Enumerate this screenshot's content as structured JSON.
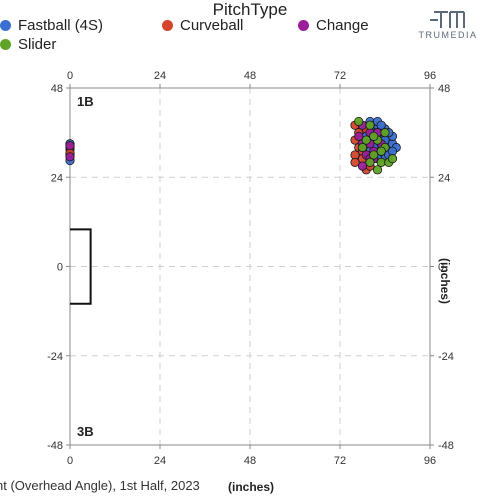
{
  "legend": {
    "title": "PitchType",
    "items": [
      {
        "label": "Fastball (4S)",
        "color": "#3b6fd1"
      },
      {
        "label": "Curveball",
        "color": "#d5442b"
      },
      {
        "label": "Change",
        "color": "#9a1e9a"
      },
      {
        "label": "Slider",
        "color": "#5fa424"
      }
    ]
  },
  "brand": {
    "name": "TRUMEDIA",
    "icon": "trumedia-logo-icon"
  },
  "caption": "nt (Overhead Angle), 1st Half, 2023",
  "unit_label_bottom": "(inches)",
  "unit_label_side": "(inches)",
  "chart_data": {
    "type": "scatter",
    "title": "",
    "xlabel": "(inches)",
    "ylabel": "(inches)",
    "xlim": [
      0,
      96
    ],
    "ylim": [
      -48,
      48
    ],
    "x_ticks": [
      "0",
      "24",
      "48",
      "72",
      "96"
    ],
    "y_ticks": [
      "48",
      "24",
      "0",
      "-24",
      "-48"
    ],
    "grid": true,
    "base_labels": {
      "first_base": "1B",
      "third_base": "3B"
    },
    "home_plate_box": {
      "x": [
        0,
        5.5
      ],
      "y": [
        -10,
        10
      ]
    },
    "series": [
      {
        "name": "Fastball (4S)",
        "color": "#3b6fd1",
        "points": [
          [
            0,
            33
          ],
          [
            0,
            31.5
          ],
          [
            0,
            30
          ],
          [
            0,
            28.5
          ],
          [
            80,
            39
          ],
          [
            81,
            38
          ],
          [
            82,
            37
          ],
          [
            83,
            36
          ],
          [
            84,
            35
          ],
          [
            85,
            34
          ],
          [
            81,
            36
          ],
          [
            82,
            35
          ],
          [
            83,
            34
          ],
          [
            84,
            33
          ],
          [
            86,
            33
          ],
          [
            87,
            32
          ],
          [
            80,
            35
          ],
          [
            81,
            34
          ],
          [
            82,
            33
          ],
          [
            83,
            32
          ],
          [
            84,
            31
          ],
          [
            85,
            31
          ],
          [
            82,
            31
          ],
          [
            83,
            30
          ],
          [
            84,
            29
          ],
          [
            85,
            30
          ],
          [
            81,
            32
          ],
          [
            79,
            33
          ],
          [
            80,
            37
          ],
          [
            82,
            39
          ],
          [
            84,
            37
          ],
          [
            86,
            35
          ],
          [
            85,
            36
          ],
          [
            83,
            38
          ],
          [
            78,
            36
          ],
          [
            79,
            35
          ],
          [
            86,
            31
          ],
          [
            82,
            29
          ],
          [
            80,
            31
          ],
          [
            84,
            34
          ]
        ]
      },
      {
        "name": "Curveball",
        "color": "#d5442b",
        "points": [
          [
            0,
            32
          ],
          [
            0,
            30.5
          ],
          [
            76,
            38
          ],
          [
            77,
            36
          ],
          [
            76,
            34
          ],
          [
            77,
            32
          ],
          [
            76,
            30
          ],
          [
            76,
            28
          ],
          [
            79,
            26
          ],
          [
            78,
            31
          ],
          [
            80,
            27
          ],
          [
            78,
            29
          ],
          [
            79,
            37
          ]
        ]
      },
      {
        "name": "Change",
        "color": "#9a1e9a",
        "points": [
          [
            0,
            32.5
          ],
          [
            0,
            29.5
          ],
          [
            78,
            38
          ],
          [
            78,
            33
          ],
          [
            77,
            35
          ],
          [
            80,
            36
          ],
          [
            79,
            30
          ],
          [
            81,
            29
          ],
          [
            83,
            33
          ],
          [
            80,
            33
          ],
          [
            82,
            36
          ],
          [
            81,
            31
          ],
          [
            78,
            27
          ],
          [
            80,
            29
          ]
        ]
      },
      {
        "name": "Slider",
        "color": "#5fa424",
        "points": [
          [
            77,
            39
          ],
          [
            80,
            38
          ],
          [
            79,
            34
          ],
          [
            82,
            34
          ],
          [
            84,
            32
          ],
          [
            81,
            30
          ],
          [
            83,
            28
          ],
          [
            85,
            28
          ],
          [
            82,
            26
          ],
          [
            78,
            32
          ],
          [
            80,
            28
          ],
          [
            86,
            29
          ],
          [
            84,
            36
          ],
          [
            83,
            31
          ],
          [
            81,
            35
          ]
        ]
      }
    ]
  }
}
